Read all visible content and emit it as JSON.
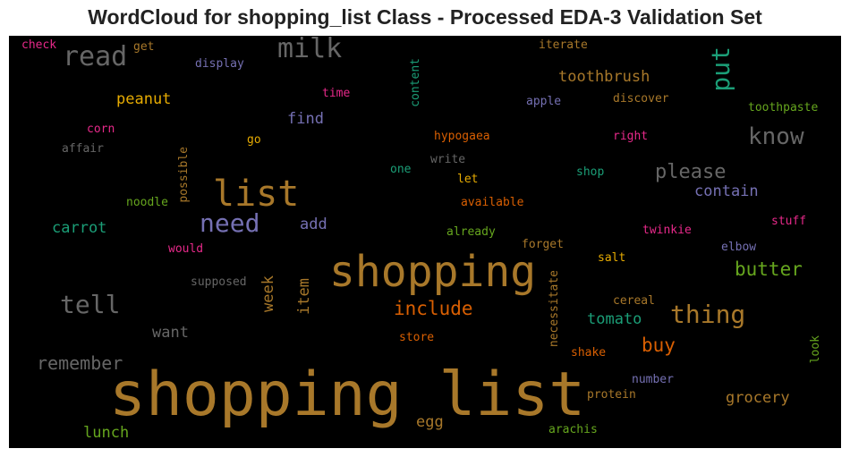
{
  "chart_data": {
    "type": "wordcloud",
    "title": "WordCloud for shopping_list Class - Processed EDA-3 Validation Set",
    "background": "#000000",
    "words": [
      {
        "text": "shopping list",
        "color": "#a8782a"
      },
      {
        "text": "shopping",
        "color": "#a8782a"
      },
      {
        "text": "list",
        "color": "#a8782a"
      },
      {
        "text": "need",
        "color": "#7570b3"
      },
      {
        "text": "tell",
        "color": "#666666"
      },
      {
        "text": "read",
        "color": "#666666"
      },
      {
        "text": "milk",
        "color": "#666666"
      },
      {
        "text": "put",
        "color": "#1b9e77"
      },
      {
        "text": "know",
        "color": "#666666"
      },
      {
        "text": "thing",
        "color": "#a8782a"
      },
      {
        "text": "please",
        "color": "#666666"
      },
      {
        "text": "include",
        "color": "#d95f02"
      },
      {
        "text": "butter",
        "color": "#66a61e"
      },
      {
        "text": "remember",
        "color": "#666666"
      },
      {
        "text": "buy",
        "color": "#d95f02"
      },
      {
        "text": "toothbrush",
        "color": "#a8782a"
      },
      {
        "text": "peanut",
        "color": "#e6ab02"
      },
      {
        "text": "carrot",
        "color": "#1b9e77"
      },
      {
        "text": "find",
        "color": "#7570b3"
      },
      {
        "text": "contain",
        "color": "#7570b3"
      },
      {
        "text": "grocery",
        "color": "#a8782a"
      },
      {
        "text": "tomato",
        "color": "#1b9e77"
      },
      {
        "text": "add",
        "color": "#7570b3"
      },
      {
        "text": "want",
        "color": "#666666"
      },
      {
        "text": "lunch",
        "color": "#66a61e"
      },
      {
        "text": "egg",
        "color": "#a8782a"
      },
      {
        "text": "week",
        "color": "#a8782a"
      },
      {
        "text": "item",
        "color": "#a8782a"
      },
      {
        "text": "check",
        "color": "#e7298a"
      },
      {
        "text": "get",
        "color": "#a8782a"
      },
      {
        "text": "display",
        "color": "#7570b3"
      },
      {
        "text": "iterate",
        "color": "#a8782a"
      },
      {
        "text": "content",
        "color": "#1b9e77"
      },
      {
        "text": "time",
        "color": "#e7298a"
      },
      {
        "text": "apple",
        "color": "#7570b3"
      },
      {
        "text": "discover",
        "color": "#a8782a"
      },
      {
        "text": "toothpaste",
        "color": "#66a61e"
      },
      {
        "text": "corn",
        "color": "#e7298a"
      },
      {
        "text": "affair",
        "color": "#666666"
      },
      {
        "text": "go",
        "color": "#e6ab02"
      },
      {
        "text": "hypogaea",
        "color": "#d95f02"
      },
      {
        "text": "right",
        "color": "#e7298a"
      },
      {
        "text": "possible",
        "color": "#a8782a"
      },
      {
        "text": "write",
        "color": "#666666"
      },
      {
        "text": "one",
        "color": "#1b9e77"
      },
      {
        "text": "shop",
        "color": "#1b9e77"
      },
      {
        "text": "let",
        "color": "#e6ab02"
      },
      {
        "text": "noodle",
        "color": "#66a61e"
      },
      {
        "text": "available",
        "color": "#d95f02"
      },
      {
        "text": "stuff",
        "color": "#e7298a"
      },
      {
        "text": "already",
        "color": "#66a61e"
      },
      {
        "text": "twinkie",
        "color": "#e7298a"
      },
      {
        "text": "would",
        "color": "#e7298a"
      },
      {
        "text": "forget",
        "color": "#a8782a"
      },
      {
        "text": "elbow",
        "color": "#7570b3"
      },
      {
        "text": "salt",
        "color": "#e6ab02"
      },
      {
        "text": "supposed",
        "color": "#666666"
      },
      {
        "text": "necessitate",
        "color": "#a8782a"
      },
      {
        "text": "cereal",
        "color": "#a8782a"
      },
      {
        "text": "store",
        "color": "#d95f02"
      },
      {
        "text": "shake",
        "color": "#d95f02"
      },
      {
        "text": "look",
        "color": "#66a61e"
      },
      {
        "text": "number",
        "color": "#7570b3"
      },
      {
        "text": "protein",
        "color": "#a8782a"
      },
      {
        "text": "arachis",
        "color": "#66a61e"
      }
    ]
  }
}
